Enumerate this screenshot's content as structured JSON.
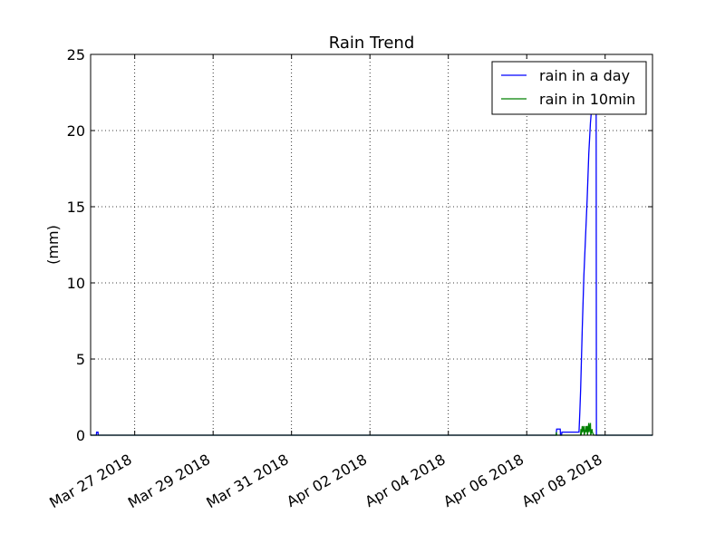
{
  "chart_data": {
    "type": "line",
    "title": "Rain Trend",
    "xlabel": "",
    "ylabel": "(mm)",
    "xlim": [
      "2018-03-25T21:00",
      "2018-04-09T05:00"
    ],
    "ylim": [
      0,
      25
    ],
    "grid": true,
    "legend_position": "top-right",
    "x_ticks": [
      {
        "date": "2018-03-27",
        "label": "Mar 27 2018"
      },
      {
        "date": "2018-03-29",
        "label": "Mar 29 2018"
      },
      {
        "date": "2018-03-31",
        "label": "Mar 31 2018"
      },
      {
        "date": "2018-04-02",
        "label": "Apr 02 2018"
      },
      {
        "date": "2018-04-04",
        "label": "Apr 04 2018"
      },
      {
        "date": "2018-04-06",
        "label": "Apr 06 2018"
      },
      {
        "date": "2018-04-08",
        "label": "Apr 08 2018"
      }
    ],
    "y_ticks": [
      0,
      5,
      10,
      15,
      20,
      25
    ],
    "series": [
      {
        "name": "rain in a day",
        "color": "#0000ff",
        "points": [
          [
            "2018-03-25T21:00",
            0.0
          ],
          [
            "2018-03-26T00:30",
            0.0
          ],
          [
            "2018-03-26T00:40",
            0.2
          ],
          [
            "2018-03-26T01:30",
            0.2
          ],
          [
            "2018-03-26T01:40",
            0.0
          ],
          [
            "2018-04-06T18:00",
            0.0
          ],
          [
            "2018-04-06T18:20",
            0.4
          ],
          [
            "2018-04-06T20:30",
            0.4
          ],
          [
            "2018-04-06T20:40",
            0.0
          ],
          [
            "2018-04-06T21:20",
            0.0
          ],
          [
            "2018-04-06T21:30",
            0.2
          ],
          [
            "2018-04-07T08:00",
            0.2
          ],
          [
            "2018-04-07T08:30",
            1.5
          ],
          [
            "2018-04-07T09:00",
            3.0
          ],
          [
            "2018-04-07T10:00",
            7.0
          ],
          [
            "2018-04-07T11:00",
            10.5
          ],
          [
            "2018-04-07T12:00",
            13.0
          ],
          [
            "2018-04-07T13:00",
            15.5
          ],
          [
            "2018-04-07T14:00",
            18.5
          ],
          [
            "2018-04-07T15:00",
            20.5
          ],
          [
            "2018-04-07T16:00",
            21.8
          ],
          [
            "2018-04-07T17:00",
            22.0
          ],
          [
            "2018-04-07T18:30",
            22.0
          ],
          [
            "2018-04-07T18:40",
            0.0
          ],
          [
            "2018-04-09T05:00",
            0.0
          ]
        ]
      },
      {
        "name": "rain in 10min",
        "color": "#008000",
        "points": [
          [
            "2018-03-25T21:00",
            0.0
          ],
          [
            "2018-04-06T18:00",
            0.0
          ],
          [
            "2018-04-06T18:10",
            0.2
          ],
          [
            "2018-04-06T18:20",
            0.0
          ],
          [
            "2018-04-07T09:00",
            0.0
          ],
          [
            "2018-04-07T09:10",
            0.4
          ],
          [
            "2018-04-07T09:20",
            0.0
          ],
          [
            "2018-04-07T10:00",
            0.6
          ],
          [
            "2018-04-07T10:10",
            0.2
          ],
          [
            "2018-04-07T11:00",
            0.6
          ],
          [
            "2018-04-07T11:10",
            0.0
          ],
          [
            "2018-04-07T12:00",
            0.4
          ],
          [
            "2018-04-07T12:10",
            0.6
          ],
          [
            "2018-04-07T12:20",
            0.2
          ],
          [
            "2018-04-07T13:00",
            0.6
          ],
          [
            "2018-04-07T13:10",
            0.0
          ],
          [
            "2018-04-07T14:00",
            0.8
          ],
          [
            "2018-04-07T14:10",
            0.2
          ],
          [
            "2018-04-07T15:00",
            0.8
          ],
          [
            "2018-04-07T15:10",
            0.0
          ],
          [
            "2018-04-07T16:00",
            0.4
          ],
          [
            "2018-04-07T16:10",
            0.2
          ],
          [
            "2018-04-07T17:00",
            0.0
          ],
          [
            "2018-04-09T05:00",
            0.0
          ]
        ]
      }
    ]
  }
}
